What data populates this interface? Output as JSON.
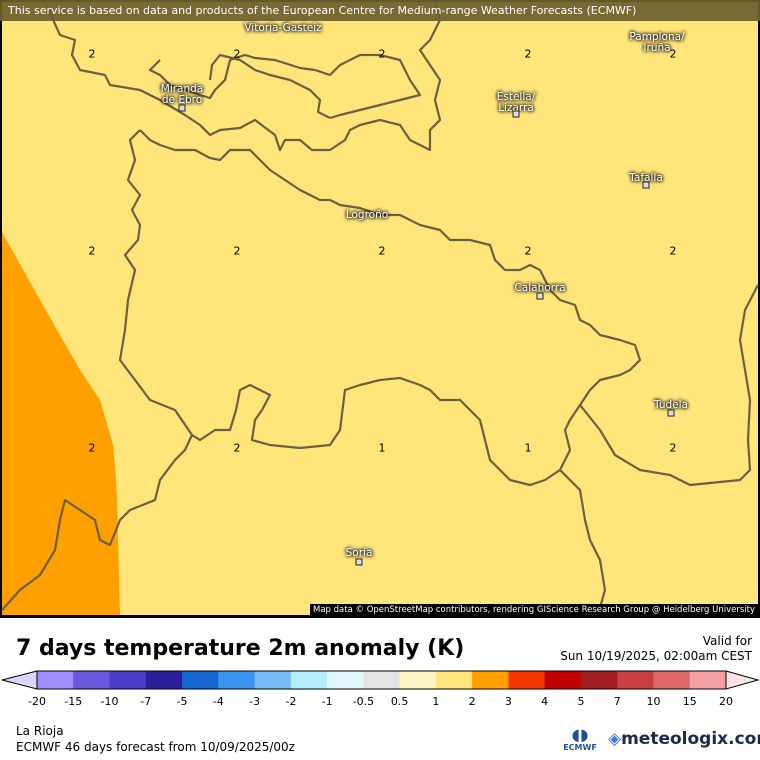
{
  "banner": "This service is based on data and products of the European Centre for Medium-range Weather Forecasts (ECMWF)",
  "attribution": "Map data © OpenStreetMap contributors, rendering GIScience Research Group @ Heidelberg University",
  "cities": [
    {
      "name": "Vitoria-Gasteiz",
      "marker": false
    },
    {
      "name": "Pamplona/\nIruña",
      "marker": false
    },
    {
      "name": "Miranda\nde Ebro",
      "marker": true
    },
    {
      "name": "Estella/\nLizarra",
      "marker": true
    },
    {
      "name": "Tafalla",
      "marker": true
    },
    {
      "name": "Logroño",
      "marker": false
    },
    {
      "name": "Calahorra",
      "marker": true
    },
    {
      "name": "Tudela",
      "marker": true
    },
    {
      "name": "Soria",
      "marker": true
    }
  ],
  "grid_values": [
    [
      "2",
      "2",
      "2",
      "2",
      "2"
    ],
    [
      "2",
      "2",
      "2",
      "2",
      "2"
    ],
    [
      "2",
      "2",
      "1",
      "1",
      "2"
    ]
  ],
  "field_colors": {
    "anomaly_2_3": "#ff9f00",
    "anomaly_1_2": "#ffe57a",
    "border": "#6b6040"
  },
  "title": "7 days temperature 2m anomaly (K)",
  "valid_label": "Valid for",
  "valid_time": "Sun 10/19/2025, 02:00am CEST",
  "legend": {
    "labels": [
      "-20",
      "-15",
      "-10",
      "-7",
      "-5",
      "-4",
      "-3",
      "-2",
      "-1",
      "-0.5",
      "0.5",
      "1",
      "2",
      "3",
      "4",
      "5",
      "7",
      "10",
      "15",
      "20"
    ],
    "colors": [
      "#a18cff",
      "#6a58dd",
      "#4b3ec8",
      "#2c1f9c",
      "#1565d0",
      "#3b95f0",
      "#78baf5",
      "#b2eef8",
      "#e0f6fd",
      "#e3e3e3",
      "#fdf4c6",
      "#ffe57a",
      "#ff9f00",
      "#f53500",
      "#c10000",
      "#a11f23",
      "#c84040",
      "#e06a6a",
      "#f5a0a0"
    ],
    "under_color": "#d8d6f8",
    "over_color": "#fde4e4"
  },
  "region": "La Rioja",
  "forecast": "ECMWF 46 days forecast from  10/09/2025/00z",
  "ecmwf_logo": "ECMWF",
  "brand": "meteologix.com"
}
